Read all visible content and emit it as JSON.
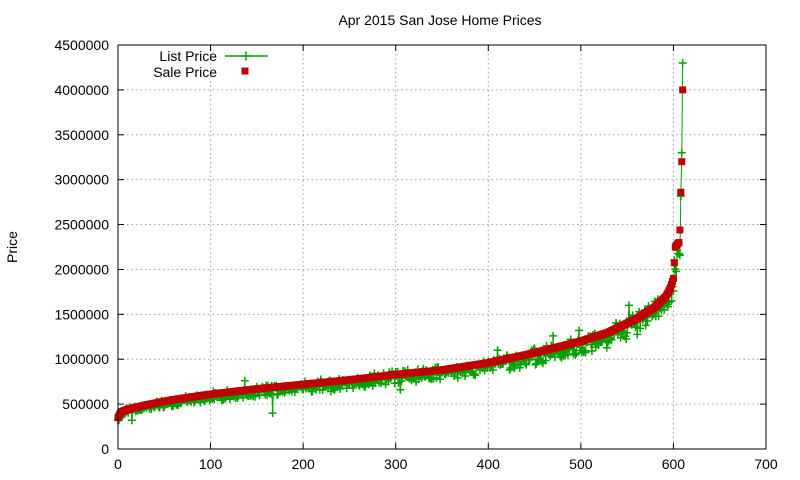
{
  "chart_data": {
    "type": "scatter",
    "title": "Apr 2015 San Jose Home Prices",
    "ylabel": "Price",
    "xlabel": "",
    "xlim": [
      0,
      700
    ],
    "ylim": [
      0,
      4500000
    ],
    "xticks": [
      "0",
      "100",
      "200",
      "300",
      "400",
      "500",
      "600",
      "700"
    ],
    "yticks": [
      "0",
      "500000",
      "1000000",
      "1500000",
      "2000000",
      "2500000",
      "3000000",
      "3500000",
      "4000000",
      "4500000"
    ],
    "grid": true,
    "legend_position": "top-left",
    "colors": {
      "list_price": "#00a000",
      "sale_price": "#c00000"
    },
    "sale_price_curve": [
      [
        0,
        350000
      ],
      [
        3,
        410000
      ],
      [
        10,
        440000
      ],
      [
        30,
        490000
      ],
      [
        60,
        550000
      ],
      [
        100,
        610000
      ],
      [
        150,
        670000
      ],
      [
        200,
        720000
      ],
      [
        250,
        770000
      ],
      [
        300,
        830000
      ],
      [
        350,
        880000
      ],
      [
        400,
        960000
      ],
      [
        450,
        1070000
      ],
      [
        500,
        1200000
      ],
      [
        530,
        1300000
      ],
      [
        560,
        1450000
      ],
      [
        580,
        1580000
      ],
      [
        592,
        1700000
      ],
      [
        597,
        1800000
      ],
      [
        600,
        1900000
      ],
      [
        602,
        2250000
      ],
      [
        604,
        2280000
      ],
      [
        606,
        2300000
      ],
      [
        607,
        2440000
      ],
      [
        608,
        2860000
      ],
      [
        609,
        3200000
      ],
      [
        610,
        4000000
      ]
    ],
    "list_price_outliers": [
      [
        15,
        320000
      ],
      [
        167,
        400000
      ],
      [
        137,
        760000
      ],
      [
        230,
        640000
      ],
      [
        305,
        660000
      ],
      [
        410,
        1100000
      ],
      [
        470,
        1260000
      ],
      [
        498,
        1320000
      ],
      [
        552,
        1600000
      ],
      [
        598,
        1650000
      ],
      [
        609,
        3300000
      ],
      [
        610,
        4300000
      ]
    ],
    "series": [
      {
        "name": "List Price",
        "marker": "plus-line"
      },
      {
        "name": "Sale Price",
        "marker": "filled-square"
      }
    ]
  }
}
